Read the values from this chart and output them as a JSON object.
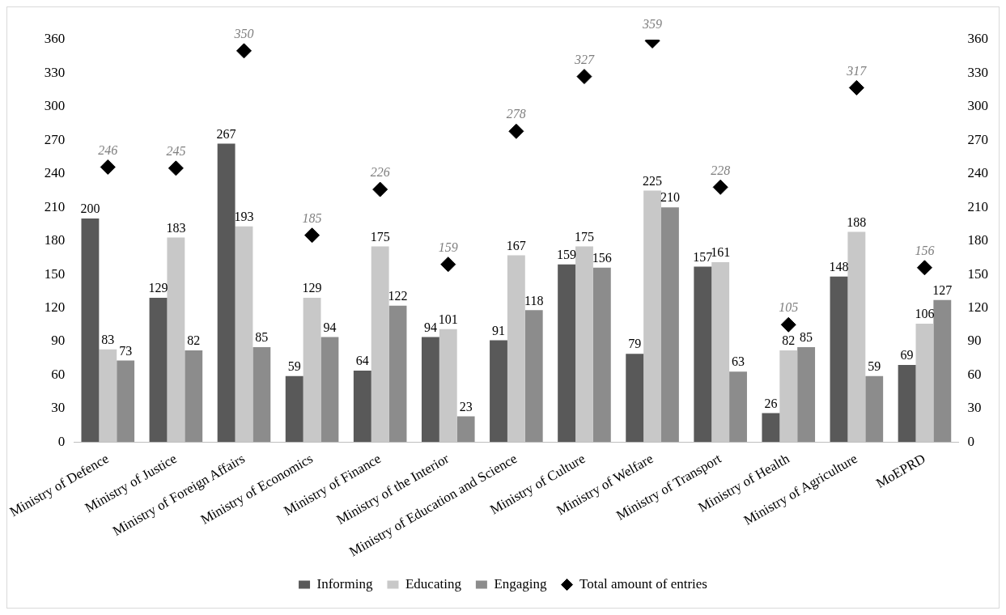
{
  "chart_data": {
    "type": "bar",
    "categories": [
      "Ministry of Defence",
      "Ministry of Justice",
      "Ministry of Foreign Affairs",
      "Ministry of Economics",
      "Ministry of Finance",
      "Ministry of the Interior",
      "Ministry of Education and Science",
      "Ministry of Culture",
      "Ministry of Welfare",
      "Ministry of Transport",
      "Ministry of Health",
      "Ministry of Agriculture",
      "MoEPRD"
    ],
    "series": [
      {
        "name": "Informing",
        "color": "#595959",
        "values": [
          200,
          129,
          267,
          59,
          64,
          94,
          91,
          159,
          79,
          157,
          26,
          148,
          69
        ]
      },
      {
        "name": "Educating",
        "color": "#c8c8c8",
        "values": [
          83,
          183,
          193,
          129,
          175,
          101,
          167,
          175,
          225,
          161,
          82,
          188,
          106
        ]
      },
      {
        "name": "Engaging",
        "color": "#8c8c8c",
        "values": [
          73,
          82,
          85,
          94,
          122,
          23,
          118,
          156,
          210,
          63,
          85,
          59,
          127
        ]
      },
      {
        "name": "Total amount of entries",
        "type": "scatter",
        "color": "#000000",
        "values": [
          246,
          245,
          350,
          185,
          226,
          159,
          278,
          327,
          359,
          228,
          105,
          317,
          156
        ]
      }
    ],
    "ylim": [
      0,
      360
    ],
    "yticks": [
      0,
      30,
      60,
      90,
      120,
      150,
      180,
      210,
      240,
      270,
      300,
      330,
      360
    ],
    "y2lim": [
      0,
      360
    ],
    "y2ticks": [
      0,
      30,
      60,
      90,
      120,
      150,
      180,
      210,
      240,
      270,
      300,
      330,
      360
    ],
    "marker": "diamond",
    "data_labels": true,
    "grid": false,
    "legend": "bottom"
  }
}
